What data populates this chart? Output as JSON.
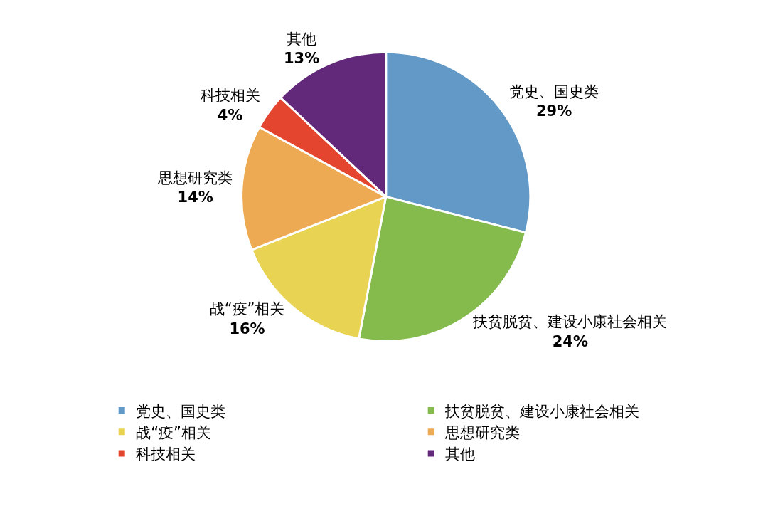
{
  "chart_data": {
    "type": "pie",
    "categories": [
      "党史、国史类",
      "扶贫脱贫、建设小康社会相关",
      "战“疫”相关",
      "思想研究类",
      "科技相关",
      "其他"
    ],
    "values": [
      29,
      24,
      16,
      14,
      4,
      13
    ],
    "value_labels": [
      "29%",
      "24%",
      "16%",
      "14%",
      "4%",
      "13%"
    ],
    "colors": [
      "#6399c6",
      "#84bb4c",
      "#e8d352",
      "#eeaa52",
      "#e3452f",
      "#62287a"
    ],
    "legend": "bottom"
  }
}
